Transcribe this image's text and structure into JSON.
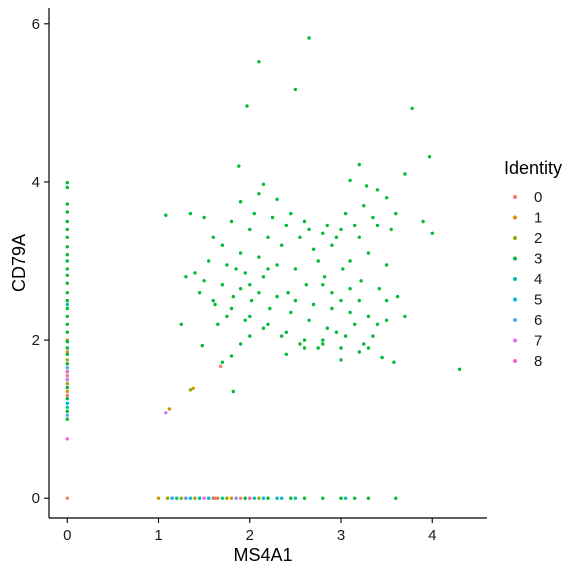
{
  "chart_data": {
    "type": "scatter",
    "xlabel": "MS4A1",
    "ylabel": "CD79A",
    "xlim": [
      -0.2,
      4.6
    ],
    "ylim": [
      -0.25,
      6.2
    ],
    "xticks": [
      0,
      1,
      2,
      3,
      4
    ],
    "yticks": [
      0,
      2,
      4,
      6
    ],
    "grid": false,
    "legend": {
      "title": "Identity",
      "position": "right"
    },
    "series": [
      {
        "name": "0",
        "color": "#F8766D",
        "points": [
          [
            0,
            0
          ],
          [
            1.68,
            1.67
          ],
          [
            0,
            1.55
          ],
          [
            0,
            1.3
          ],
          [
            1.5,
            0
          ],
          [
            1.9,
            0
          ],
          [
            1.2,
            0
          ]
        ]
      },
      {
        "name": "1",
        "color": "#D39200",
        "points": [
          [
            0,
            2.0
          ],
          [
            0,
            1.85
          ],
          [
            0,
            1.35
          ],
          [
            1.38,
            1.39
          ],
          [
            1.12,
            1.13
          ],
          [
            1.0,
            0
          ],
          [
            1.3,
            0
          ],
          [
            1.45,
            0
          ],
          [
            1.55,
            0
          ],
          [
            1.65,
            0
          ],
          [
            1.8,
            0
          ],
          [
            2.0,
            0
          ]
        ]
      },
      {
        "name": "2",
        "color": "#93AA00",
        "points": [
          [
            0,
            1.75
          ],
          [
            0,
            1.45
          ],
          [
            1.35,
            1.37
          ],
          [
            1.1,
            0
          ],
          [
            1.25,
            0
          ],
          [
            1.4,
            0
          ],
          [
            1.6,
            0
          ],
          [
            1.75,
            0
          ],
          [
            2.1,
            0
          ]
        ]
      },
      {
        "name": "3",
        "color": "#00BA38",
        "points": [
          [
            0,
            3.99
          ],
          [
            0,
            3.93
          ],
          [
            0,
            3.72
          ],
          [
            0,
            3.62
          ],
          [
            0,
            3.5
          ],
          [
            0,
            3.4
          ],
          [
            0,
            3.3
          ],
          [
            0,
            3.18
          ],
          [
            0,
            3.08
          ],
          [
            0,
            3.0
          ],
          [
            0,
            2.9
          ],
          [
            0,
            2.82
          ],
          [
            0,
            2.72
          ],
          [
            0,
            2.6
          ],
          [
            0,
            2.5
          ],
          [
            0,
            2.4
          ],
          [
            0,
            2.3
          ],
          [
            0,
            2.2
          ],
          [
            0,
            2.1
          ],
          [
            0,
            1.98
          ],
          [
            0,
            1.9
          ],
          [
            0,
            1.82
          ],
          [
            0,
            1.7
          ],
          [
            0,
            1.6
          ],
          [
            0,
            1.5
          ],
          [
            0,
            1.4
          ],
          [
            0,
            1.26
          ],
          [
            0,
            1.1
          ],
          [
            0,
            1.0
          ],
          [
            2.65,
            5.82
          ],
          [
            2.1,
            5.52
          ],
          [
            2.5,
            5.17
          ],
          [
            1.97,
            4.96
          ],
          [
            3.78,
            4.93
          ],
          [
            3.97,
            4.32
          ],
          [
            1.88,
            4.2
          ],
          [
            3.2,
            4.22
          ],
          [
            3.7,
            4.1
          ],
          [
            3.1,
            4.02
          ],
          [
            3.28,
            3.95
          ],
          [
            2.15,
            3.97
          ],
          [
            3.4,
            3.9
          ],
          [
            3.5,
            3.8
          ],
          [
            1.08,
            3.58
          ],
          [
            1.35,
            3.6
          ],
          [
            3.6,
            3.6
          ],
          [
            3.9,
            3.5
          ],
          [
            4.0,
            3.35
          ],
          [
            1.5,
            3.55
          ],
          [
            1.8,
            3.5
          ],
          [
            2.0,
            3.4
          ],
          [
            2.2,
            3.3
          ],
          [
            2.4,
            3.45
          ],
          [
            2.6,
            3.5
          ],
          [
            2.8,
            3.35
          ],
          [
            3.0,
            3.4
          ],
          [
            3.2,
            3.3
          ],
          [
            3.4,
            3.45
          ],
          [
            1.6,
            3.3
          ],
          [
            1.7,
            3.2
          ],
          [
            1.9,
            3.1
          ],
          [
            2.1,
            3.05
          ],
          [
            2.3,
            2.95
          ],
          [
            2.5,
            2.9
          ],
          [
            2.7,
            3.15
          ],
          [
            2.9,
            3.2
          ],
          [
            3.1,
            3.0
          ],
          [
            3.3,
            3.1
          ],
          [
            3.5,
            2.95
          ],
          [
            1.3,
            2.8
          ],
          [
            1.5,
            2.75
          ],
          [
            1.7,
            2.7
          ],
          [
            1.9,
            2.65
          ],
          [
            2.1,
            2.6
          ],
          [
            2.3,
            2.55
          ],
          [
            2.5,
            2.5
          ],
          [
            2.7,
            2.45
          ],
          [
            2.9,
            2.4
          ],
          [
            3.1,
            2.35
          ],
          [
            3.3,
            2.3
          ],
          [
            3.5,
            2.25
          ],
          [
            3.7,
            2.3
          ],
          [
            1.45,
            2.6
          ],
          [
            1.6,
            2.5
          ],
          [
            1.8,
            2.4
          ],
          [
            2.0,
            2.3
          ],
          [
            2.2,
            2.2
          ],
          [
            2.4,
            2.1
          ],
          [
            2.6,
            2.0
          ],
          [
            2.8,
            1.95
          ],
          [
            3.0,
            1.9
          ],
          [
            3.2,
            1.85
          ],
          [
            1.75,
            2.3
          ],
          [
            1.95,
            2.25
          ],
          [
            2.15,
            2.15
          ],
          [
            2.35,
            2.05
          ],
          [
            2.55,
            1.95
          ],
          [
            2.75,
            1.9
          ],
          [
            2.95,
            2.1
          ],
          [
            3.15,
            2.2
          ],
          [
            3.35,
            2.05
          ],
          [
            1.62,
            2.45
          ],
          [
            1.82,
            2.55
          ],
          [
            2.02,
            2.5
          ],
          [
            2.22,
            2.4
          ],
          [
            2.42,
            2.6
          ],
          [
            2.62,
            2.7
          ],
          [
            2.82,
            2.8
          ],
          [
            3.02,
            2.9
          ],
          [
            3.22,
            2.75
          ],
          [
            3.42,
            2.65
          ],
          [
            3.62,
            2.55
          ],
          [
            1.55,
            3.0
          ],
          [
            1.75,
            2.95
          ],
          [
            1.95,
            2.85
          ],
          [
            2.15,
            2.8
          ],
          [
            2.35,
            3.2
          ],
          [
            2.55,
            3.3
          ],
          [
            2.75,
            3.0
          ],
          [
            2.95,
            3.3
          ],
          [
            3.15,
            3.45
          ],
          [
            3.35,
            3.55
          ],
          [
            3.55,
            3.4
          ],
          [
            2.45,
            2.35
          ],
          [
            2.65,
            2.25
          ],
          [
            2.85,
            2.15
          ],
          [
            3.05,
            2.05
          ],
          [
            3.25,
            1.95
          ],
          [
            3.45,
            1.78
          ],
          [
            3.58,
            1.72
          ],
          [
            2.4,
            1.82
          ],
          [
            2.6,
            1.9
          ],
          [
            2.8,
            2.0
          ],
          [
            3.0,
            1.75
          ],
          [
            1.7,
            1.72
          ],
          [
            1.8,
            1.8
          ],
          [
            1.9,
            1.95
          ],
          [
            2.0,
            2.05
          ],
          [
            1.4,
            2.85
          ],
          [
            1.25,
            2.2
          ],
          [
            1.48,
            1.93
          ],
          [
            1.65,
            2.2
          ],
          [
            1.82,
            1.35
          ],
          [
            4.3,
            1.63
          ],
          [
            3.5,
            2.5
          ],
          [
            3.4,
            2.2
          ],
          [
            3.3,
            1.9
          ],
          [
            3.2,
            2.5
          ],
          [
            3.1,
            2.65
          ],
          [
            3.0,
            2.5
          ],
          [
            2.9,
            2.6
          ],
          [
            2.8,
            2.7
          ],
          [
            2.2,
            2.9
          ],
          [
            2.0,
            2.7
          ],
          [
            1.85,
            2.9
          ],
          [
            2.05,
            3.6
          ],
          [
            2.25,
            3.55
          ],
          [
            2.45,
            3.6
          ],
          [
            2.65,
            3.4
          ],
          [
            2.85,
            3.45
          ],
          [
            3.05,
            3.6
          ],
          [
            3.25,
            3.7
          ],
          [
            1.9,
            3.75
          ],
          [
            2.1,
            3.85
          ],
          [
            2.3,
            3.78
          ],
          [
            1.95,
            0
          ],
          [
            2.2,
            0
          ],
          [
            2.45,
            0
          ],
          [
            2.6,
            0
          ],
          [
            2.8,
            0
          ],
          [
            3.0,
            0
          ],
          [
            3.15,
            0
          ],
          [
            3.3,
            0
          ],
          [
            3.6,
            0
          ]
        ]
      },
      {
        "name": "4",
        "color": "#00C19F",
        "points": [
          [
            0,
            2.45
          ],
          [
            0,
            1.15
          ],
          [
            1.2,
            0
          ],
          [
            1.45,
            0
          ],
          [
            1.7,
            0
          ],
          [
            2.05,
            0
          ],
          [
            2.3,
            0
          ],
          [
            2.5,
            0
          ],
          [
            3.05,
            0
          ]
        ]
      },
      {
        "name": "5",
        "color": "#00B9E3",
        "points": [
          [
            0,
            1.2
          ],
          [
            1.15,
            0
          ],
          [
            1.35,
            0
          ],
          [
            1.55,
            0
          ],
          [
            2.15,
            0
          ],
          [
            2.35,
            0
          ]
        ]
      },
      {
        "name": "6",
        "color": "#619CFF",
        "points": [
          [
            0,
            1.65
          ],
          [
            0,
            1.05
          ],
          [
            1.3,
            0
          ],
          [
            1.85,
            0
          ]
        ]
      },
      {
        "name": "7",
        "color": "#DB72FB",
        "points": [
          [
            1.08,
            1.08
          ],
          [
            0,
            1.5
          ],
          [
            1.5,
            0
          ]
        ]
      },
      {
        "name": "8",
        "color": "#FF61C3",
        "points": [
          [
            0,
            0.75
          ],
          [
            0,
            1.6
          ],
          [
            1.62,
            0
          ],
          [
            2.0,
            0
          ]
        ]
      }
    ]
  }
}
